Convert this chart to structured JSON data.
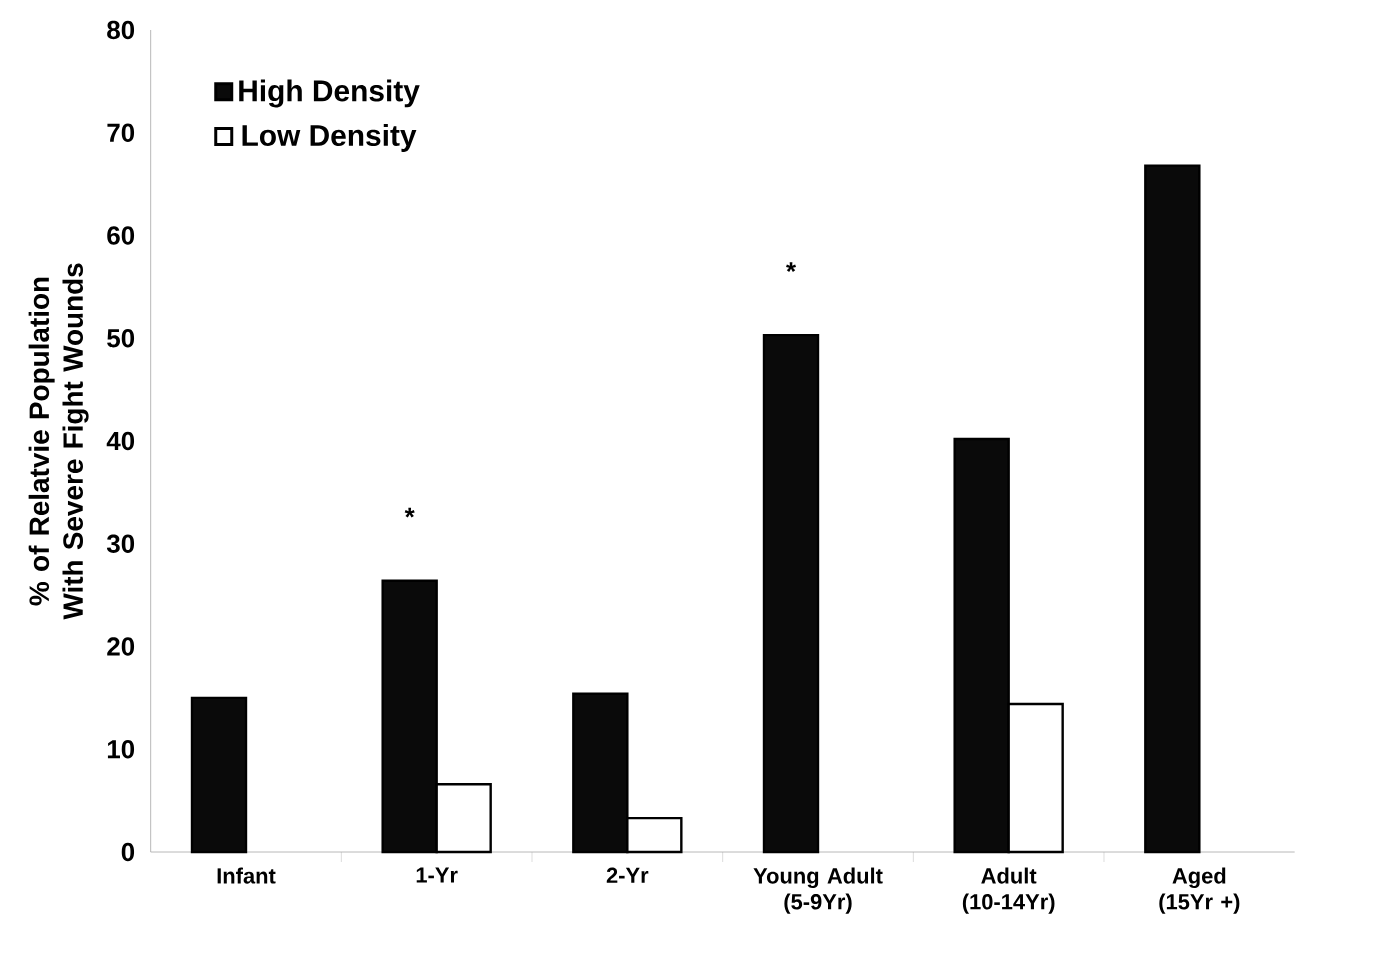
{
  "chart_data": {
    "type": "bar",
    "ylabel": "% of Relatvie Population With Severe Fight Wounds",
    "categories": [
      "Infant",
      "1-Yr",
      "2-Yr",
      "Young Adult (5-9Yr)",
      "Adult (10-14Yr)",
      "Aged (15Yr +)"
    ],
    "series": [
      {
        "name": "High Density",
        "color": "#0a0a0a",
        "values": [
          15.0,
          26.4,
          15.4,
          50.3,
          40.2,
          66.8
        ]
      },
      {
        "name": "Low Density",
        "color": "#ffffff",
        "values": [
          null,
          6.6,
          3.3,
          null,
          14.4,
          null
        ]
      }
    ],
    "ylim": [
      0,
      80
    ],
    "yticks": [
      0,
      10,
      20,
      30,
      40,
      50,
      60,
      70,
      80
    ],
    "legend": "top left",
    "annotations": [
      {
        "text": "*",
        "x": "1-Yr",
        "y": 26.4
      },
      {
        "text": "*",
        "x": "Young Adult (5-9Yr)",
        "y": 50.3
      }
    ]
  }
}
